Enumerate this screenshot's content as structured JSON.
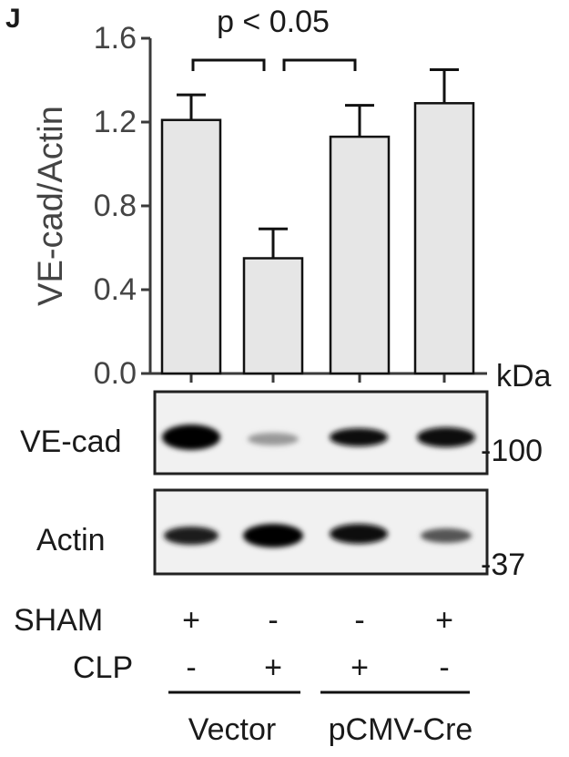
{
  "panel_label": "J",
  "chart_data": {
    "type": "bar",
    "y_label": "VE-cad/Actin",
    "annotation": "p < 0.05",
    "categories": [
      null,
      null,
      null,
      null
    ],
    "values": [
      1.21,
      0.55,
      1.13,
      1.29
    ],
    "errors": [
      0.12,
      0.14,
      0.15,
      0.16
    ],
    "color": "#e6e6e6",
    "ylim": [
      0,
      1.6
    ],
    "yticks": [
      {
        "value": 0,
        "label": "0.0"
      },
      0.4,
      0.8,
      1.2,
      1.6
    ]
  },
  "blot": {
    "unit": "kDa",
    "rows": [
      {
        "label": "VE-cad",
        "marker": "-100"
      },
      {
        "label": "Actin",
        "marker": "-37"
      }
    ]
  },
  "conditions": [
    {
      "name": "SHAM",
      "signs": [
        "+",
        "-",
        "-",
        "+"
      ]
    },
    {
      "name": "CLP",
      "signs": [
        "-",
        "+",
        "+",
        "-"
      ]
    }
  ],
  "groups": [
    "Vector",
    "pCMV-Cre"
  ]
}
